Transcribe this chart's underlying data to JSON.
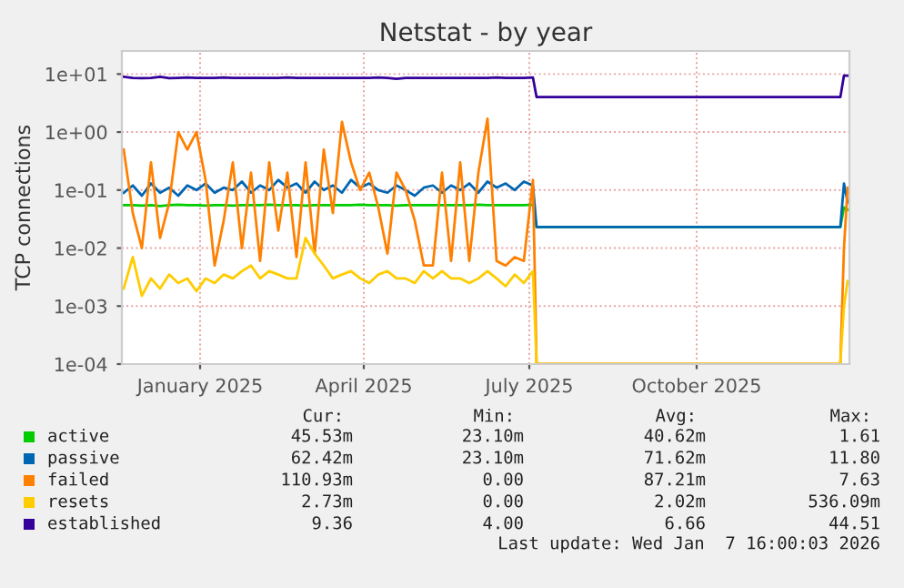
{
  "chart_data": {
    "type": "line",
    "title": "Netstat - by year",
    "ylabel": "TCP connections",
    "x": [
      "2024-12-05",
      "2024-12-10",
      "2024-12-15",
      "2024-12-20",
      "2024-12-25",
      "2024-12-30",
      "2025-01-04",
      "2025-01-09",
      "2025-01-14",
      "2025-01-19",
      "2025-01-24",
      "2025-01-29",
      "2025-02-03",
      "2025-02-08",
      "2025-02-13",
      "2025-02-18",
      "2025-02-23",
      "2025-02-28",
      "2025-03-05",
      "2025-03-10",
      "2025-03-15",
      "2025-03-20",
      "2025-03-25",
      "2025-03-30",
      "2025-04-04",
      "2025-04-09",
      "2025-04-14",
      "2025-04-19",
      "2025-04-24",
      "2025-04-29",
      "2025-05-04",
      "2025-05-09",
      "2025-05-14",
      "2025-05-19",
      "2025-05-24",
      "2025-05-29",
      "2025-06-03",
      "2025-06-08",
      "2025-06-13",
      "2025-06-18",
      "2025-06-23",
      "2025-06-28",
      "2025-07-03",
      "2025-07-08",
      "2025-07-13",
      "2025-07-18",
      "2025-07-20",
      "2026-01-03",
      "2026-01-05",
      "2026-01-07"
    ],
    "series": [
      {
        "name": "active",
        "color": "#00cc00",
        "values": [
          0.055,
          0.055,
          0.054,
          0.055,
          0.053,
          0.055,
          0.056,
          0.055,
          0.055,
          0.054,
          0.055,
          0.055,
          0.054,
          0.055,
          0.055,
          0.055,
          0.056,
          0.055,
          0.055,
          0.055,
          0.054,
          0.055,
          0.055,
          0.055,
          0.055,
          0.055,
          0.056,
          0.055,
          0.055,
          0.055,
          0.054,
          0.055,
          0.055,
          0.055,
          0.055,
          0.055,
          0.055,
          0.055,
          0.055,
          0.056,
          0.055,
          0.055,
          0.055,
          0.055,
          0.055,
          0.056,
          0.0231,
          0.0231,
          0.05,
          0.046
        ]
      },
      {
        "name": "passive",
        "color": "#0066b3",
        "values": [
          0.09,
          0.12,
          0.08,
          0.13,
          0.09,
          0.11,
          0.08,
          0.12,
          0.1,
          0.13,
          0.09,
          0.11,
          0.1,
          0.14,
          0.09,
          0.12,
          0.1,
          0.15,
          0.11,
          0.13,
          0.09,
          0.14,
          0.1,
          0.12,
          0.09,
          0.15,
          0.11,
          0.13,
          0.1,
          0.09,
          0.12,
          0.1,
          0.08,
          0.11,
          0.12,
          0.09,
          0.12,
          0.1,
          0.13,
          0.09,
          0.14,
          0.11,
          0.13,
          0.1,
          0.14,
          0.12,
          0.0231,
          0.0231,
          0.13,
          0.062
        ]
      },
      {
        "name": "failed",
        "color": "#ff8000",
        "values": [
          0.5,
          0.04,
          0.01,
          0.3,
          0.015,
          0.06,
          1.0,
          0.5,
          1.0,
          0.15,
          0.005,
          0.03,
          0.3,
          0.01,
          0.2,
          0.006,
          0.3,
          0.02,
          0.2,
          0.007,
          0.3,
          0.008,
          0.5,
          0.04,
          1.5,
          0.3,
          0.1,
          0.2,
          0.05,
          0.008,
          0.2,
          0.1,
          0.03,
          0.005,
          0.005,
          0.2,
          0.006,
          0.3,
          0.006,
          0.2,
          1.7,
          0.006,
          0.005,
          0.007,
          0.006,
          0.15,
          0.0001,
          0.0001,
          0.01,
          0.11
        ]
      },
      {
        "name": "resets",
        "color": "#ffcc00",
        "values": [
          0.002,
          0.007,
          0.0015,
          0.003,
          0.002,
          0.0035,
          0.0025,
          0.003,
          0.0018,
          0.003,
          0.0025,
          0.0035,
          0.003,
          0.004,
          0.005,
          0.003,
          0.004,
          0.0035,
          0.003,
          0.003,
          0.015,
          0.008,
          0.005,
          0.003,
          0.0035,
          0.004,
          0.003,
          0.0025,
          0.0035,
          0.004,
          0.003,
          0.003,
          0.0025,
          0.004,
          0.003,
          0.004,
          0.003,
          0.003,
          0.0025,
          0.003,
          0.004,
          0.003,
          0.0022,
          0.0035,
          0.0025,
          0.004,
          0.0001,
          0.0001,
          0.001,
          0.0027
        ]
      },
      {
        "name": "established",
        "color": "#330099",
        "values": [
          9.0,
          8.6,
          8.5,
          8.6,
          9.0,
          8.5,
          8.6,
          8.7,
          8.6,
          8.6,
          8.6,
          8.7,
          8.6,
          8.6,
          8.6,
          8.6,
          8.6,
          8.6,
          8.7,
          8.6,
          8.6,
          8.6,
          8.6,
          8.6,
          8.6,
          8.6,
          8.6,
          8.6,
          8.7,
          8.6,
          8.3,
          8.6,
          8.6,
          8.6,
          8.6,
          8.6,
          8.6,
          8.6,
          8.6,
          8.6,
          8.6,
          8.7,
          8.6,
          8.6,
          8.6,
          8.7,
          4.0,
          4.0,
          9.4,
          9.36
        ]
      }
    ],
    "log": "y",
    "ylim": [
      0.0001,
      25
    ],
    "yticks": [
      {
        "value": 0.0001,
        "label": "1e-04"
      },
      {
        "value": 0.001,
        "label": "1e-03"
      },
      {
        "value": 0.01,
        "label": "1e-02"
      },
      {
        "value": 0.1,
        "label": "1e-01"
      },
      {
        "value": 1,
        "label": "1e+00"
      },
      {
        "value": 10,
        "label": "1e+01"
      }
    ],
    "xlim": [
      "2024-12-04",
      "2026-01-08"
    ],
    "xticks": [
      {
        "value": "2025-01-16",
        "label": "January 2025"
      },
      {
        "value": "2025-04-16",
        "label": "April 2025"
      },
      {
        "value": "2025-07-16",
        "label": "July 2025"
      },
      {
        "value": "2025-10-16",
        "label": "October 2025"
      }
    ],
    "grid": true,
    "legend": "bottom",
    "annotations": [
      "Cur:",
      "Min:",
      "Avg:",
      "Max:",
      "45.53m",
      "23.10m",
      "40.62m",
      "1.61",
      "62.42m",
      "23.10m",
      "71.62m",
      "11.80",
      "110.93m",
      "0.00",
      "87.21m",
      "7.63",
      "2.73m",
      "0.00",
      "2.02m",
      "536.09m",
      "9.36",
      "4.00",
      "6.66",
      "44.51",
      "Last update: Wed Jan  7 16:00:03 2026"
    ]
  }
}
